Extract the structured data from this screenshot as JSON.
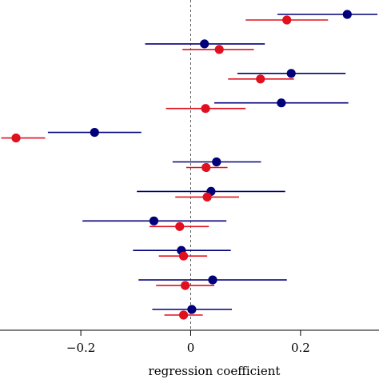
{
  "chart_data": {
    "type": "scatter",
    "subtype": "forest-plot",
    "title": "",
    "xlabel": "regression coefficient",
    "ylabel": "",
    "xlim": [
      -0.345,
      0.34
    ],
    "xticks": [
      -0.2,
      0,
      0.2
    ],
    "xtick_labels": [
      "−0.2",
      "0",
      "0.2"
    ],
    "reference_line": {
      "x": 0,
      "style": "dashed"
    },
    "grid": false,
    "legend": "none",
    "colors": {
      "blue": "#00007a",
      "red": "#e0101e",
      "reference": "#555555"
    },
    "rows": [
      {
        "blue": {
          "estimate": 0.285,
          "lower": 0.158,
          "upper": 0.34
        },
        "red": {
          "estimate": 0.175,
          "lower": 0.1,
          "upper": 0.25
        }
      },
      {
        "blue": {
          "estimate": 0.025,
          "lower": -0.083,
          "upper": 0.135
        },
        "red": {
          "estimate": 0.052,
          "lower": -0.015,
          "upper": 0.115
        }
      },
      {
        "blue": {
          "estimate": 0.183,
          "lower": 0.085,
          "upper": 0.282
        },
        "red": {
          "estimate": 0.127,
          "lower": 0.068,
          "upper": 0.188
        }
      },
      {
        "blue": {
          "estimate": 0.165,
          "lower": 0.043,
          "upper": 0.287
        },
        "red": {
          "estimate": 0.027,
          "lower": -0.045,
          "upper": 0.1
        }
      },
      {
        "blue": {
          "estimate": -0.175,
          "lower": -0.26,
          "upper": -0.09
        },
        "red": {
          "estimate": -0.318,
          "lower": -0.345,
          "upper": -0.265
        }
      },
      {
        "blue": {
          "estimate": 0.047,
          "lower": -0.033,
          "upper": 0.128
        },
        "red": {
          "estimate": 0.028,
          "lower": -0.008,
          "upper": 0.067
        }
      },
      {
        "blue": {
          "estimate": 0.037,
          "lower": -0.098,
          "upper": 0.172
        },
        "red": {
          "estimate": 0.03,
          "lower": -0.028,
          "upper": 0.088
        }
      },
      {
        "blue": {
          "estimate": -0.067,
          "lower": -0.197,
          "upper": 0.065
        },
        "red": {
          "estimate": -0.02,
          "lower": -0.075,
          "upper": 0.033
        }
      },
      {
        "blue": {
          "estimate": -0.017,
          "lower": -0.105,
          "upper": 0.073
        },
        "red": {
          "estimate": -0.013,
          "lower": -0.058,
          "upper": 0.03
        }
      },
      {
        "blue": {
          "estimate": 0.04,
          "lower": -0.095,
          "upper": 0.175
        },
        "red": {
          "estimate": -0.01,
          "lower": -0.063,
          "upper": 0.043
        }
      },
      {
        "blue": {
          "estimate": 0.002,
          "lower": -0.07,
          "upper": 0.075
        },
        "red": {
          "estimate": -0.013,
          "lower": -0.048,
          "upper": 0.022
        }
      }
    ]
  }
}
